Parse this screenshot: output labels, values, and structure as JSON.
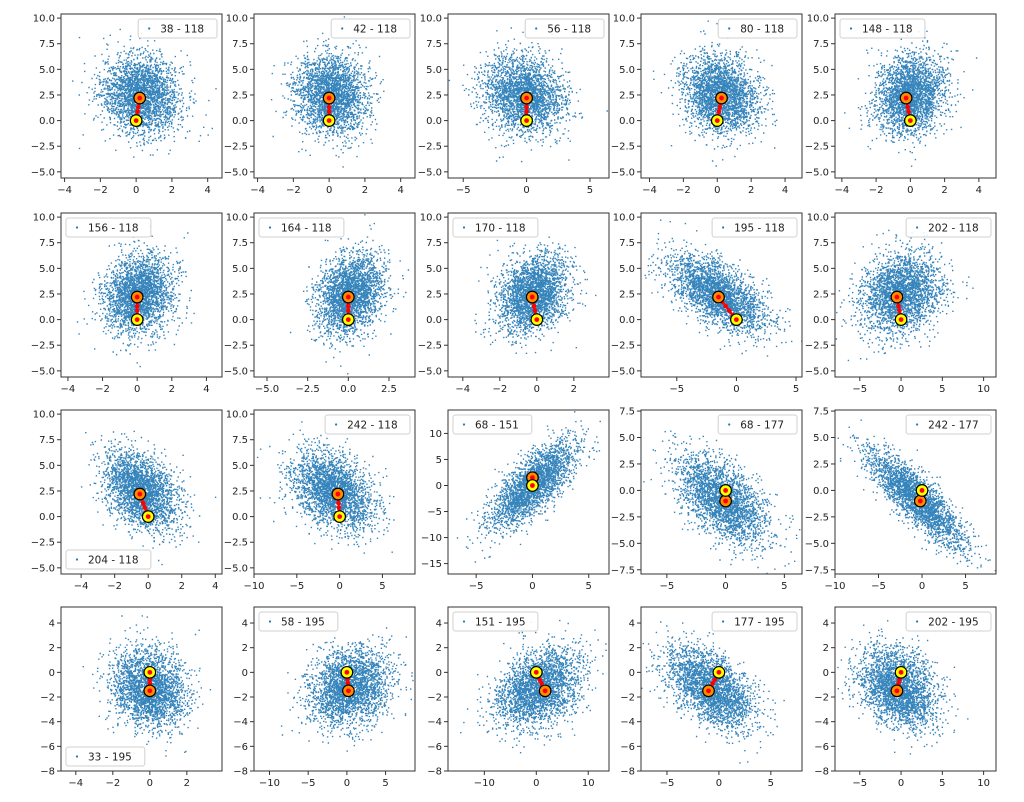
{
  "figure": {
    "background": "#ffffff",
    "point_color": "#1f77b4",
    "start_marker_color": "#ffff00",
    "end_marker_color": "#ff8c00",
    "path_color": "#ff0000",
    "grid": false,
    "rows": 4,
    "cols": 5
  },
  "chart_data": [
    {
      "type": "scatter",
      "legend": "38 - 118",
      "legend_loc": "upper right",
      "xlim": [
        -4.2,
        4.8
      ],
      "ylim": [
        -5.6,
        10.4
      ],
      "xticks": [
        -4,
        -2,
        0,
        2,
        4
      ],
      "yticks": [
        -5.0,
        -2.5,
        0.0,
        2.5,
        5.0,
        7.5,
        10.0
      ],
      "cloud": {
        "mx": 0.3,
        "my": 2.5,
        "sx": 1.1,
        "sy": 1.9,
        "rho": -0.1
      },
      "start": [
        0.0,
        0.0
      ],
      "end": [
        0.2,
        2.2
      ]
    },
    {
      "type": "scatter",
      "legend": "42 - 118",
      "legend_loc": "upper right",
      "xlim": [
        -4.2,
        4.8
      ],
      "ylim": [
        -5.6,
        10.4
      ],
      "xticks": [
        -4,
        -2,
        0,
        2,
        4
      ],
      "yticks": [
        -5.0,
        -2.5,
        0.0,
        2.5,
        5.0,
        7.5,
        10.0
      ],
      "cloud": {
        "mx": 0.1,
        "my": 2.5,
        "sx": 1.0,
        "sy": 1.9,
        "rho": -0.05
      },
      "start": [
        0.0,
        0.0
      ],
      "end": [
        0.0,
        2.2
      ]
    },
    {
      "type": "scatter",
      "legend": "56 - 118",
      "legend_loc": "upper right",
      "xlim": [
        -6.2,
        6.5
      ],
      "ylim": [
        -5.6,
        10.4
      ],
      "xticks": [
        -5,
        0,
        5
      ],
      "yticks": [
        -5.0,
        -2.5,
        0.0,
        2.5,
        5.0,
        7.5,
        10.0
      ],
      "cloud": {
        "mx": -0.2,
        "my": 2.5,
        "sx": 1.6,
        "sy": 1.9,
        "rho": -0.1
      },
      "start": [
        0.0,
        0.0
      ],
      "end": [
        0.0,
        2.2
      ]
    },
    {
      "type": "scatter",
      "legend": "80 - 118",
      "legend_loc": "upper right",
      "xlim": [
        -4.5,
        5.0
      ],
      "ylim": [
        -5.6,
        10.4
      ],
      "xticks": [
        -4,
        -2,
        0,
        2,
        4
      ],
      "yticks": [
        -5.0,
        -2.5,
        0.0,
        2.5,
        5.0,
        7.5,
        10.0
      ],
      "cloud": {
        "mx": 0.2,
        "my": 2.5,
        "sx": 1.1,
        "sy": 1.9,
        "rho": -0.15
      },
      "start": [
        0.0,
        0.0
      ],
      "end": [
        0.25,
        2.2
      ]
    },
    {
      "type": "scatter",
      "legend": "148 - 118",
      "legend_loc": "upper left",
      "xlim": [
        -4.4,
        5.0
      ],
      "ylim": [
        -5.6,
        10.4
      ],
      "xticks": [
        -4,
        -2,
        0,
        2,
        4
      ],
      "yticks": [
        -5.0,
        -2.5,
        0.0,
        2.5,
        5.0,
        7.5,
        10.0
      ],
      "cloud": {
        "mx": 0.0,
        "my": 2.5,
        "sx": 1.0,
        "sy": 1.9,
        "rho": 0.15
      },
      "start": [
        0.0,
        0.0
      ],
      "end": [
        -0.25,
        2.2
      ]
    },
    {
      "type": "scatter",
      "legend": "156 - 118",
      "legend_loc": "upper left",
      "xlim": [
        -4.4,
        4.9
      ],
      "ylim": [
        -5.6,
        10.4
      ],
      "xticks": [
        -4,
        -2,
        0,
        2,
        4
      ],
      "yticks": [
        -5.0,
        -2.5,
        0.0,
        2.5,
        5.0,
        7.5,
        10.0
      ],
      "cloud": {
        "mx": 0.1,
        "my": 2.5,
        "sx": 1.0,
        "sy": 1.9,
        "rho": 0.15
      },
      "start": [
        0.0,
        0.0
      ],
      "end": [
        0.0,
        2.2
      ]
    },
    {
      "type": "scatter",
      "legend": "164 - 118",
      "legend_loc": "upper left",
      "xlim": [
        -5.8,
        4.1
      ],
      "ylim": [
        -5.6,
        10.4
      ],
      "xticks": [
        -5.0,
        -2.5,
        0.0,
        2.5
      ],
      "yticks": [
        -5.0,
        -2.5,
        0.0,
        2.5,
        5.0,
        7.5,
        10.0
      ],
      "cloud": {
        "mx": 0.1,
        "my": 2.5,
        "sx": 1.0,
        "sy": 1.9,
        "rho": 0.25
      },
      "start": [
        0.0,
        0.0
      ],
      "end": [
        0.0,
        2.2
      ]
    },
    {
      "type": "scatter",
      "legend": "170 - 118",
      "legend_loc": "upper left",
      "xlim": [
        -4.8,
        3.9
      ],
      "ylim": [
        -5.6,
        10.4
      ],
      "xticks": [
        -4,
        -2,
        0,
        2
      ],
      "yticks": [
        -5.0,
        -2.5,
        0.0,
        2.5,
        5.0,
        7.5,
        10.0
      ],
      "cloud": {
        "mx": -0.2,
        "my": 2.5,
        "sx": 0.95,
        "sy": 1.9,
        "rho": 0.25
      },
      "start": [
        0.0,
        0.0
      ],
      "end": [
        -0.25,
        2.2
      ]
    },
    {
      "type": "scatter",
      "legend": "195 - 118",
      "legend_loc": "upper right",
      "xlim": [
        -8.0,
        5.5
      ],
      "ylim": [
        -5.6,
        10.4
      ],
      "xticks": [
        -5,
        0,
        5
      ],
      "yticks": [
        -5.0,
        -2.5,
        0.0,
        2.5,
        5.0,
        7.5,
        10.0
      ],
      "cloud": {
        "mx": -1.5,
        "my": 2.5,
        "sx": 2.0,
        "sy": 1.9,
        "rho": -0.6
      },
      "start": [
        0.0,
        0.0
      ],
      "end": [
        -1.5,
        2.2
      ]
    },
    {
      "type": "scatter",
      "legend": "202 - 118",
      "legend_loc": "upper right",
      "xlim": [
        -8.0,
        11.5
      ],
      "ylim": [
        -5.6,
        10.4
      ],
      "xticks": [
        -5,
        0,
        5,
        10
      ],
      "yticks": [
        -5.0,
        -2.5,
        0.0,
        2.5,
        5.0,
        7.5,
        10.0
      ],
      "cloud": {
        "mx": 0.0,
        "my": 2.5,
        "sx": 2.4,
        "sy": 1.9,
        "rho": 0.15
      },
      "start": [
        0.0,
        0.0
      ],
      "end": [
        -0.5,
        2.2
      ]
    },
    {
      "type": "scatter",
      "legend": "204 - 118",
      "legend_loc": "lower left",
      "xlim": [
        -5.2,
        4.4
      ],
      "ylim": [
        -5.6,
        10.4
      ],
      "xticks": [
        -4,
        -2,
        0,
        2,
        4
      ],
      "yticks": [
        -5.0,
        -2.5,
        0.0,
        2.5,
        5.0,
        7.5,
        10.0
      ],
      "cloud": {
        "mx": -0.4,
        "my": 2.5,
        "sx": 1.1,
        "sy": 1.9,
        "rho": -0.4
      },
      "start": [
        0.0,
        0.0
      ],
      "end": [
        -0.5,
        2.2
      ]
    },
    {
      "type": "scatter",
      "legend": "242 - 118",
      "legend_loc": "upper right",
      "xlim": [
        -10.0,
        8.8
      ],
      "ylim": [
        -5.6,
        10.4
      ],
      "xticks": [
        -10,
        -5,
        0,
        5
      ],
      "yticks": [
        -5.0,
        -2.5,
        0.0,
        2.5,
        5.0,
        7.5,
        10.0
      ],
      "cloud": {
        "mx": -0.8,
        "my": 2.5,
        "sx": 2.4,
        "sy": 1.9,
        "rho": -0.35
      },
      "start": [
        0.0,
        0.0
      ],
      "end": [
        -0.2,
        2.2
      ]
    },
    {
      "type": "scatter",
      "legend": "68 - 151",
      "legend_loc": "upper left",
      "xlim": [
        -7.5,
        6.8
      ],
      "ylim": [
        -17.0,
        14.5
      ],
      "xticks": [
        -5,
        0,
        5
      ],
      "yticks": [
        -15,
        -10,
        -5,
        0,
        5,
        10
      ],
      "cloud": {
        "mx": 0.0,
        "my": 0.0,
        "sx": 1.9,
        "sy": 4.2,
        "rho": 0.75
      },
      "start": [
        0.0,
        0.0
      ],
      "end": [
        0.0,
        1.5
      ]
    },
    {
      "type": "scatter",
      "legend": "68 - 177",
      "legend_loc": "upper right",
      "xlim": [
        -7.2,
        6.5
      ],
      "ylim": [
        -7.9,
        7.6
      ],
      "xticks": [
        -5,
        0,
        5
      ],
      "yticks": [
        -7.5,
        -5.0,
        -2.5,
        0.0,
        2.5,
        5.0,
        7.5
      ],
      "cloud": {
        "mx": -0.3,
        "my": -0.9,
        "sx": 1.9,
        "sy": 2.1,
        "rho": -0.55
      },
      "start": [
        0.0,
        0.0
      ],
      "end": [
        0.0,
        -1.0
      ]
    },
    {
      "type": "scatter",
      "legend": "242 - 177",
      "legend_loc": "upper right",
      "xlim": [
        -10.0,
        8.5
      ],
      "ylim": [
        -7.9,
        7.6
      ],
      "xticks": [
        -10,
        -5,
        0,
        5
      ],
      "yticks": [
        -7.5,
        -5.0,
        -2.5,
        0.0,
        2.5,
        5.0,
        7.5
      ],
      "cloud": {
        "mx": -0.5,
        "my": -0.9,
        "sx": 2.8,
        "sy": 2.3,
        "rho": -0.85
      },
      "start": [
        0.0,
        0.0
      ],
      "end": [
        -0.2,
        -1.0
      ]
    },
    {
      "type": "scatter",
      "legend": "33 - 195",
      "legend_loc": "lower left",
      "xlim": [
        -4.8,
        3.9
      ],
      "ylim": [
        -8.0,
        5.3
      ],
      "xticks": [
        -4,
        -2,
        0,
        2
      ],
      "yticks": [
        -8,
        -6,
        -4,
        -2,
        0,
        2,
        4
      ],
      "cloud": {
        "mx": 0.0,
        "my": -1.3,
        "sx": 1.0,
        "sy": 1.6,
        "rho": -0.15
      },
      "start": [
        0.0,
        0.0
      ],
      "end": [
        0.0,
        -1.5
      ]
    },
    {
      "type": "scatter",
      "legend": "58 - 195",
      "legend_loc": "upper left",
      "xlim": [
        -12.0,
        8.8
      ],
      "ylim": [
        -8.0,
        5.3
      ],
      "xticks": [
        -10,
        -5,
        0,
        5
      ],
      "yticks": [
        -8,
        -6,
        -4,
        -2,
        0,
        2,
        4
      ],
      "cloud": {
        "mx": 0.3,
        "my": -1.3,
        "sx": 2.6,
        "sy": 1.6,
        "rho": 0.2
      },
      "start": [
        0.0,
        0.0
      ],
      "end": [
        0.2,
        -1.5
      ]
    },
    {
      "type": "scatter",
      "legend": "151 - 195",
      "legend_loc": "upper left",
      "xlim": [
        -17.0,
        14.0
      ],
      "ylim": [
        -8.0,
        5.3
      ],
      "xticks": [
        -10,
        0,
        10
      ],
      "yticks": [
        -8,
        -6,
        -4,
        -2,
        0,
        2,
        4
      ],
      "cloud": {
        "mx": 0.5,
        "my": -1.3,
        "sx": 4.0,
        "sy": 1.6,
        "rho": 0.35
      },
      "start": [
        0.0,
        0.0
      ],
      "end": [
        1.7,
        -1.5
      ]
    },
    {
      "type": "scatter",
      "legend": "177 - 195",
      "legend_loc": "upper right",
      "xlim": [
        -7.5,
        8.0
      ],
      "ylim": [
        -8.0,
        5.3
      ],
      "xticks": [
        -5,
        0,
        5
      ],
      "yticks": [
        -8,
        -6,
        -4,
        -2,
        0,
        2,
        4
      ],
      "cloud": {
        "mx": -0.8,
        "my": -1.3,
        "sx": 2.1,
        "sy": 1.6,
        "rho": -0.5
      },
      "start": [
        0.0,
        0.0
      ],
      "end": [
        -1.0,
        -1.5
      ]
    },
    {
      "type": "scatter",
      "legend": "202 - 195",
      "legend_loc": "upper right",
      "xlim": [
        -8.0,
        11.5
      ],
      "ylim": [
        -8.0,
        5.3
      ],
      "xticks": [
        -5,
        0,
        5,
        10
      ],
      "yticks": [
        -8,
        -6,
        -4,
        -2,
        0,
        2,
        4
      ],
      "cloud": {
        "mx": -0.3,
        "my": -1.3,
        "sx": 2.3,
        "sy": 1.6,
        "rho": -0.3
      },
      "start": [
        0.0,
        0.0
      ],
      "end": [
        -0.5,
        -1.5
      ]
    }
  ]
}
